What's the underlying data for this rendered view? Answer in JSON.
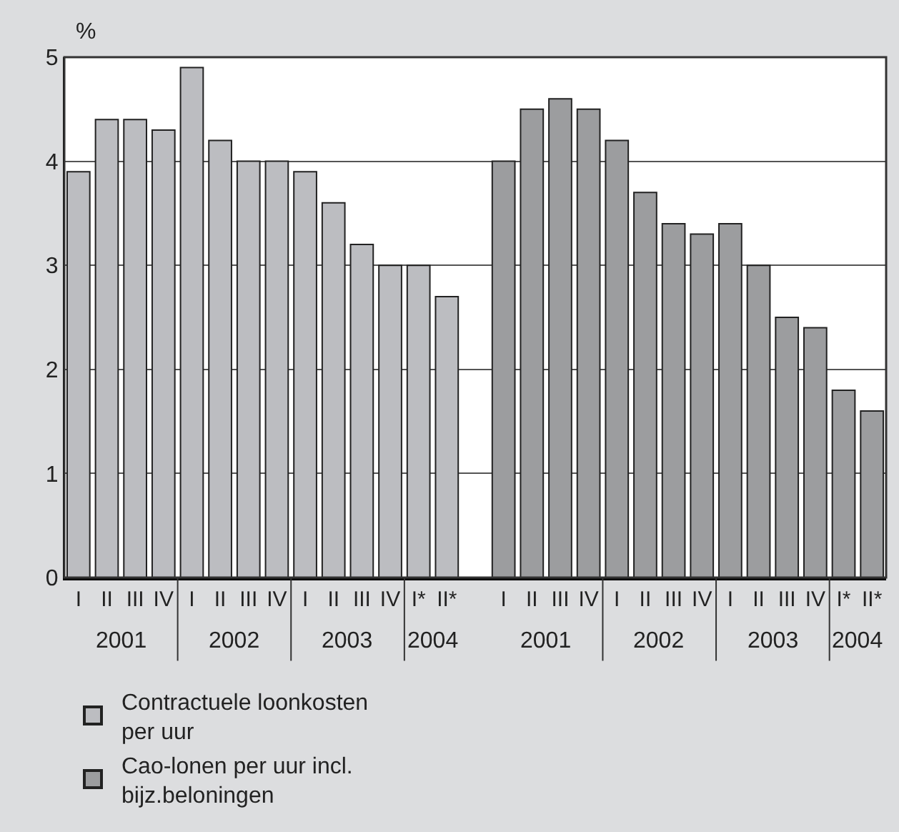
{
  "chart_data": {
    "type": "bar",
    "ylabel": "%",
    "categories": [
      "I",
      "II",
      "III",
      "IV",
      "I",
      "II",
      "III",
      "IV",
      "I",
      "II",
      "III",
      "IV",
      "I*",
      "II*",
      null,
      "I",
      "II",
      "III",
      "IV",
      "I",
      "II",
      "III",
      "IV",
      "I",
      "II",
      "III",
      "IV",
      "I*",
      "II*"
    ],
    "series": [
      {
        "name": "Contractuele loonkosten per uur",
        "color": "#bcbdc1",
        "values": [
          3.9,
          4.4,
          4.4,
          4.3,
          4.9,
          4.2,
          4.0,
          4.0,
          3.9,
          3.6,
          3.2,
          3.0,
          3.0,
          2.7,
          null,
          null,
          null,
          null,
          null,
          null,
          null,
          null,
          null,
          null,
          null,
          null,
          null,
          null,
          null
        ]
      },
      {
        "name": "Cao-lonen per uur incl. bijz.beloningen",
        "color": "#9c9d9f",
        "values": [
          null,
          null,
          null,
          null,
          null,
          null,
          null,
          null,
          null,
          null,
          null,
          null,
          null,
          null,
          null,
          4.0,
          4.5,
          4.6,
          4.5,
          4.2,
          3.7,
          3.4,
          3.3,
          3.4,
          3.0,
          2.5,
          2.4,
          1.8,
          1.6
        ]
      }
    ],
    "annotations": [
      "2001",
      "2002",
      "2003",
      "2004",
      "2001",
      "2002",
      "2003",
      "2004"
    ],
    "ylim": [
      0,
      5
    ],
    "yticks": [
      0,
      1,
      2,
      3,
      4,
      5
    ],
    "grid": "y",
    "legend": "bottom"
  }
}
